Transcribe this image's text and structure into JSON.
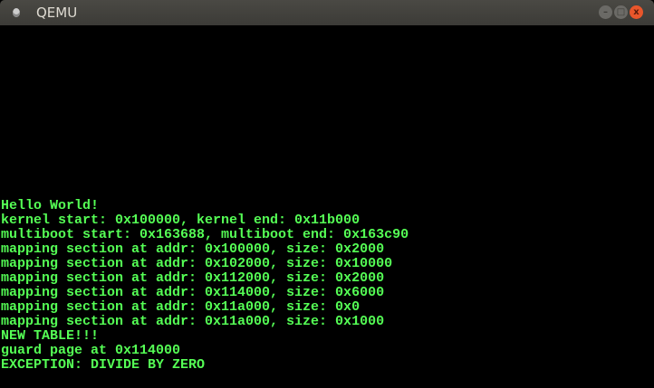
{
  "window": {
    "title": "QEMU",
    "controls": {
      "minimize": "–",
      "maximize": "□",
      "close": "x"
    }
  },
  "console": {
    "color": "#55ff55",
    "lines": [
      "Hello World!",
      "kernel start: 0x100000, kernel end: 0x11b000",
      "multiboot start: 0x163688, multiboot end: 0x163c90",
      "mapping section at addr: 0x100000, size: 0x2000",
      "mapping section at addr: 0x102000, size: 0x10000",
      "mapping section at addr: 0x112000, size: 0x2000",
      "mapping section at addr: 0x114000, size: 0x6000",
      "mapping section at addr: 0x11a000, size: 0x0",
      "mapping section at addr: 0x11a000, size: 0x1000",
      "NEW TABLE!!!",
      "guard page at 0x114000",
      "EXCEPTION: DIVIDE BY ZERO"
    ]
  }
}
